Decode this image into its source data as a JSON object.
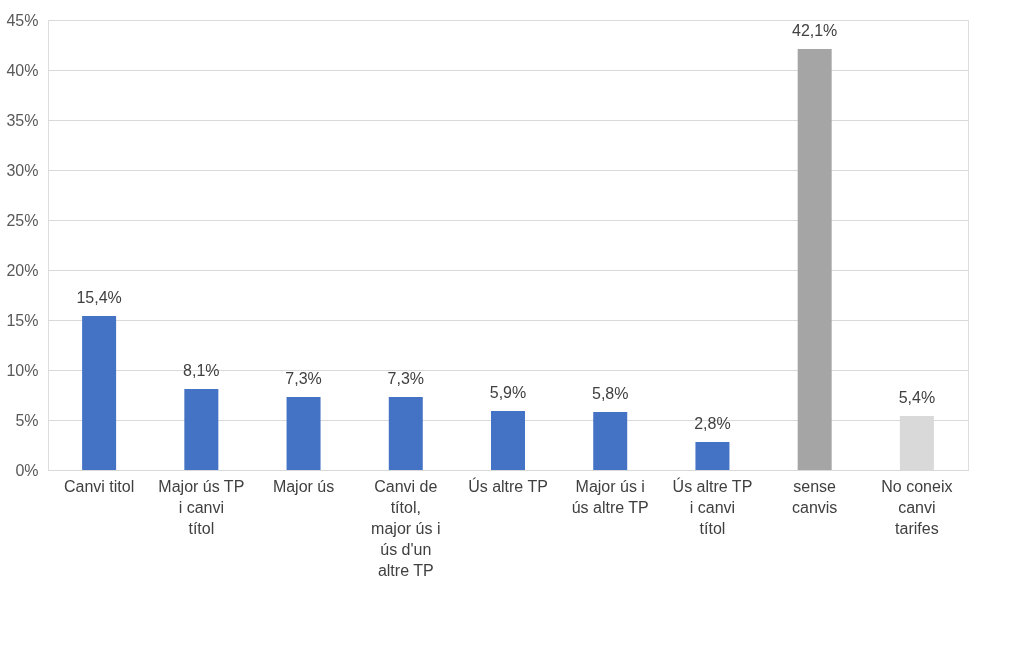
{
  "chart_data": {
    "type": "bar",
    "categories": [
      "Canvi titol",
      "Major ús TP i canvi títol",
      "Major ús",
      "Canvi de títol, major ús i ús d'un altre TP",
      "Ús altre TP",
      "Major ús i ús altre TP",
      "Ús altre TP i canvi títol",
      "sense canvis",
      "No coneix canvi tarifes"
    ],
    "values": [
      15.4,
      8.1,
      7.3,
      7.3,
      5.9,
      5.8,
      2.8,
      42.1,
      5.4
    ],
    "colors": [
      "#4472c4",
      "#4472c4",
      "#4472c4",
      "#4472c4",
      "#4472c4",
      "#4472c4",
      "#4472c4",
      "#a5a5a5",
      "#d9d9d9"
    ],
    "value_labels": [
      "15,4%",
      "8,1%",
      "7,3%",
      "7,3%",
      "5,9%",
      "5,8%",
      "2,8%",
      "42,1%",
      "5,4%"
    ],
    "ylim": [
      0,
      45
    ],
    "yticks": [
      {
        "value": 0,
        "label": "0%"
      },
      {
        "value": 5,
        "label": "5%"
      },
      {
        "value": 10,
        "label": "10%"
      },
      {
        "value": 15,
        "label": "15%"
      },
      {
        "value": 20,
        "label": "20%"
      },
      {
        "value": 25,
        "label": "25%"
      },
      {
        "value": 30,
        "label": "30%"
      },
      {
        "value": 35,
        "label": "35%"
      },
      {
        "value": 40,
        "label": "40%"
      },
      {
        "value": 45,
        "label": "45%"
      }
    ],
    "grid": "y"
  }
}
